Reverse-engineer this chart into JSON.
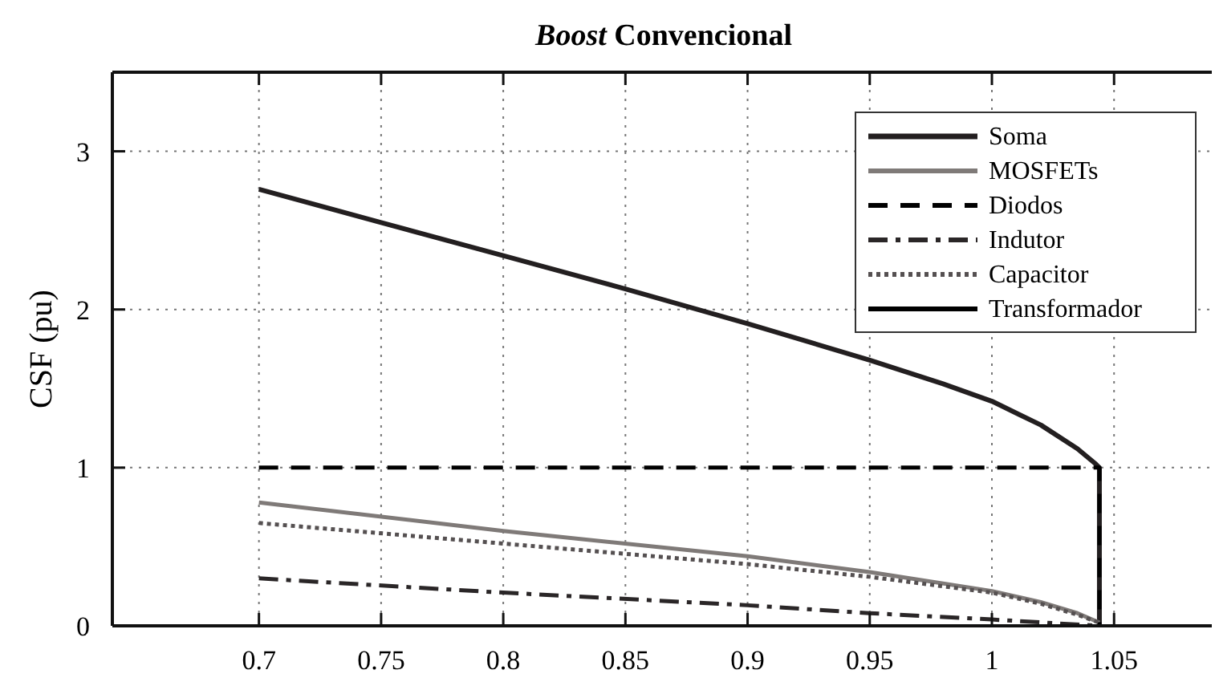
{
  "chart_data": {
    "type": "line",
    "title": "Boost Convencional",
    "ylabel": "CSF (pu)",
    "xlim": [
      0.64,
      1.09
    ],
    "xticks": [
      0.7,
      {
        "value": 0.75,
        "label": "0.75"
      },
      0.8,
      0.85,
      0.9,
      0.95,
      1,
      1.05
    ],
    "ylim": [
      0,
      3.5
    ],
    "yticks": [
      0,
      1,
      2,
      3
    ],
    "grid": true,
    "legend": "top right",
    "series": [
      {
        "name": "Soma",
        "color": "#231f20",
        "line_style": "solid",
        "x": [
          0.7,
          0.75,
          0.8,
          0.85,
          0.9,
          0.95,
          0.98,
          1.0,
          1.02,
          1.035,
          1.042,
          1.044,
          1.044
        ],
        "values": [
          2.76,
          2.55,
          2.34,
          2.13,
          1.91,
          1.68,
          1.53,
          1.42,
          1.27,
          1.12,
          1.03,
          1.0,
          0
        ]
      },
      {
        "name": "MOSFETs",
        "color": "#7f7a78",
        "line_style": "solid",
        "x": [
          0.7,
          0.8,
          0.9,
          0.95,
          1.0,
          1.02,
          1.035,
          1.044
        ],
        "values": [
          0.78,
          0.6,
          0.44,
          0.34,
          0.22,
          0.15,
          0.08,
          0.02
        ]
      },
      {
        "name": "Diodos",
        "color": "#000000",
        "line_style": "dashed",
        "x": [
          0.7,
          1.044,
          1.044
        ],
        "values": [
          1.0,
          1.0,
          0
        ]
      },
      {
        "name": "Indutor",
        "color": "#2a2627",
        "line_style": "dashdot",
        "x": [
          0.7,
          0.8,
          0.9,
          0.95,
          1.0,
          1.044
        ],
        "values": [
          0.3,
          0.21,
          0.13,
          0.08,
          0.04,
          0
        ]
      },
      {
        "name": "Capacitor",
        "color": "#555051",
        "line_style": "dotted",
        "x": [
          0.7,
          0.8,
          0.9,
          0.95,
          1.0,
          1.02,
          1.035,
          1.044
        ],
        "values": [
          0.65,
          0.52,
          0.39,
          0.31,
          0.21,
          0.14,
          0.07,
          0.02
        ]
      },
      {
        "name": "Transformador",
        "color": "#000000",
        "line_style": "solid"
      }
    ]
  }
}
